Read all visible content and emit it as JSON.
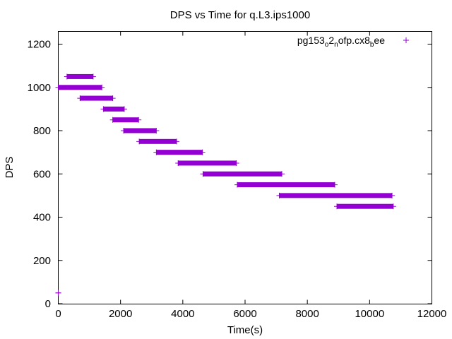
{
  "chart_data": {
    "type": "scatter",
    "title": "DPS vs Time for q.L3.ips1000",
    "xlabel": "Time(s)",
    "ylabel": "DPS",
    "xlim": [
      0,
      12000
    ],
    "ylim": [
      0,
      1250
    ],
    "xticks": [
      0,
      2000,
      4000,
      6000,
      8000,
      10000,
      12000
    ],
    "yticks": [
      0,
      200,
      400,
      600,
      800,
      1000,
      1200
    ],
    "grid": false,
    "legend_position": "top-right",
    "marker": "+",
    "series": [
      {
        "name": "pg153_o2_nofp.cx8_bee",
        "legend_parts": [
          {
            "text": "pg153",
            "script": "base"
          },
          {
            "text": "o",
            "script": "sub"
          },
          {
            "text": "2",
            "script": "base"
          },
          {
            "text": "n",
            "script": "sub"
          },
          {
            "text": "ofp.cx8",
            "script": "base"
          },
          {
            "text": "b",
            "script": "sub"
          },
          {
            "text": "ee",
            "script": "base"
          }
        ],
        "color": "#9400d3",
        "segments": [
          {
            "y": 50,
            "x_start": 0,
            "x_end": 0
          },
          {
            "y": 1000,
            "x_start": 0,
            "x_end": 1400
          },
          {
            "y": 1050,
            "x_start": 280,
            "x_end": 1120
          },
          {
            "y": 950,
            "x_start": 700,
            "x_end": 1750
          },
          {
            "y": 900,
            "x_start": 1450,
            "x_end": 2120
          },
          {
            "y": 850,
            "x_start": 1750,
            "x_end": 2580
          },
          {
            "y": 800,
            "x_start": 2100,
            "x_end": 3150
          },
          {
            "y": 750,
            "x_start": 2600,
            "x_end": 3800
          },
          {
            "y": 700,
            "x_start": 3150,
            "x_end": 4630
          },
          {
            "y": 650,
            "x_start": 3850,
            "x_end": 5720
          },
          {
            "y": 600,
            "x_start": 4650,
            "x_end": 7180
          },
          {
            "y": 550,
            "x_start": 5750,
            "x_end": 8880
          },
          {
            "y": 500,
            "x_start": 7100,
            "x_end": 10720
          },
          {
            "y": 450,
            "x_start": 8950,
            "x_end": 10760
          }
        ]
      }
    ]
  }
}
